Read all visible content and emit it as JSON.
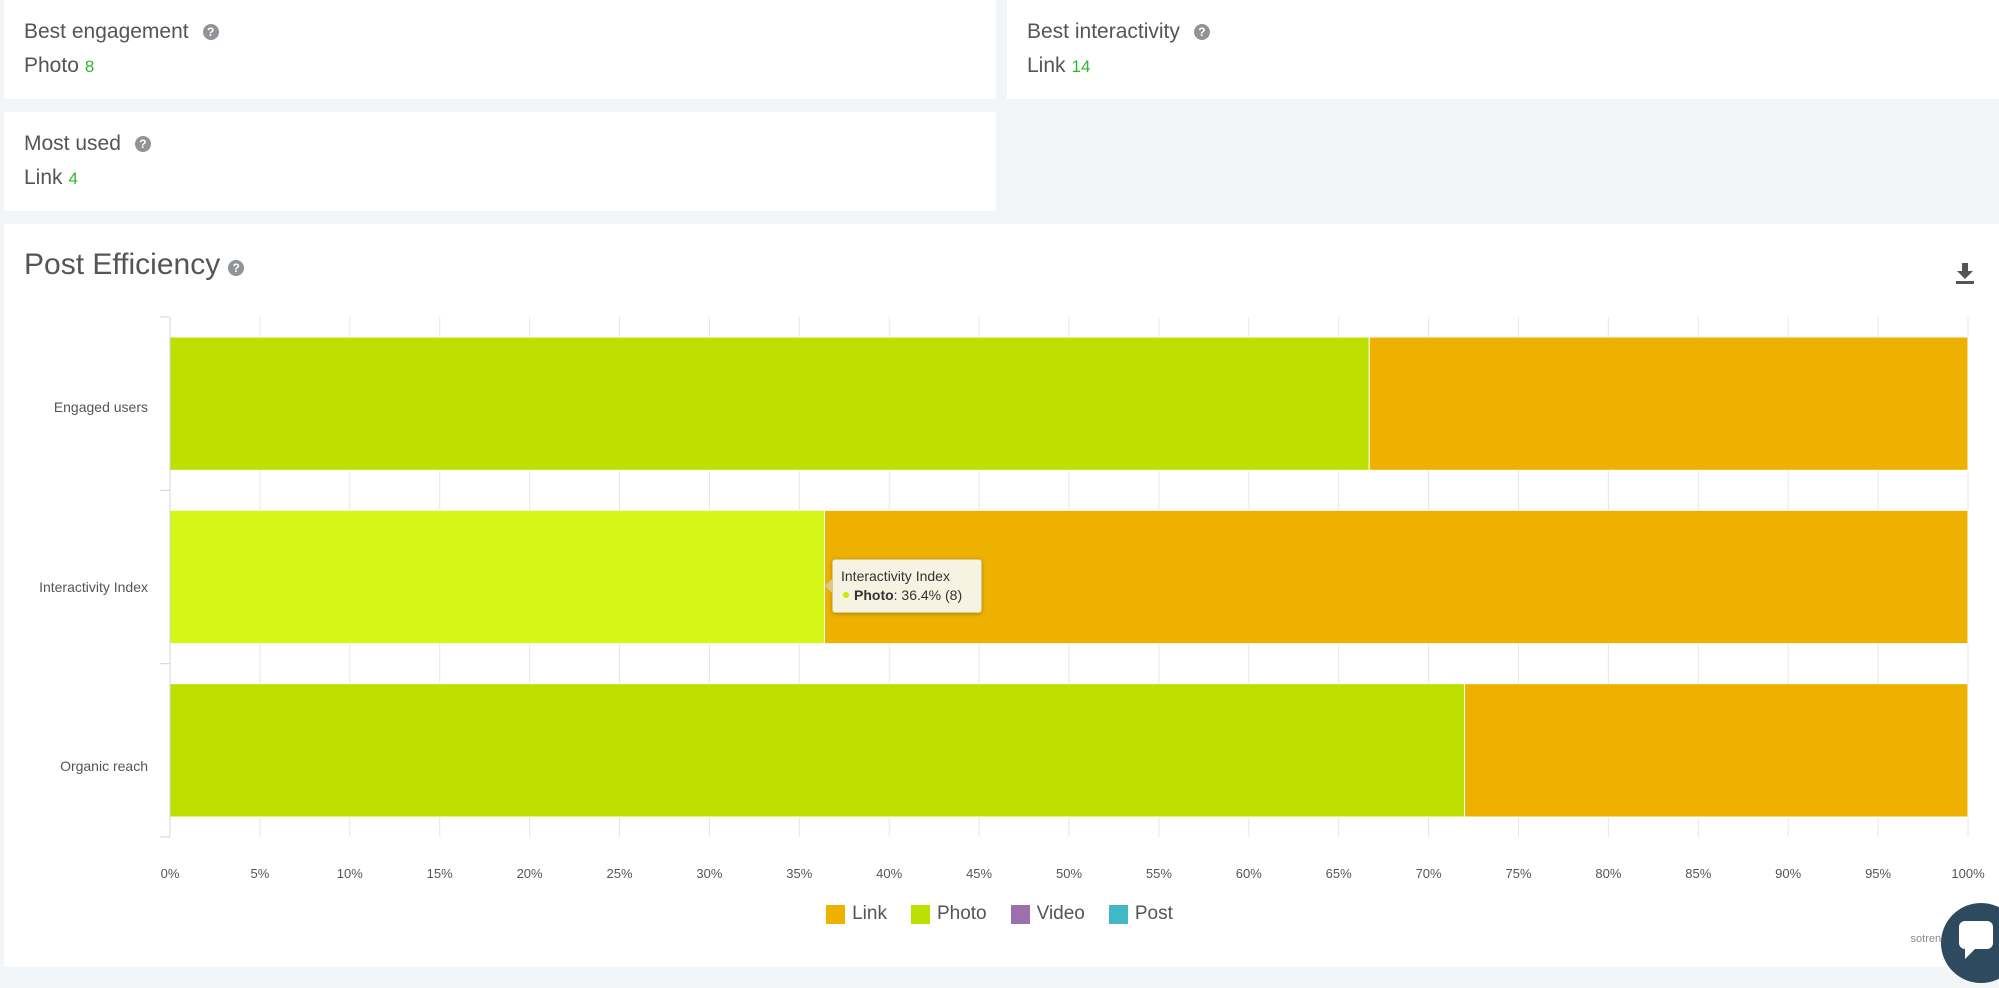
{
  "stats": {
    "best_engagement": {
      "title": "Best engagement",
      "type": "Photo",
      "value": "8"
    },
    "best_interactivity": {
      "title": "Best interactivity",
      "type": "Link",
      "value": "14"
    },
    "most_used": {
      "title": "Most used",
      "type": "Link",
      "value": "4"
    }
  },
  "help_glyph": "?",
  "section": {
    "title": "Post Efficiency"
  },
  "chart_data": {
    "type": "bar",
    "orientation": "horizontal",
    "stacked": "percent",
    "title": "Post Efficiency",
    "categories": [
      "Engaged users",
      "Interactivity Index",
      "Organic reach"
    ],
    "series": [
      {
        "name": "Photo",
        "values": [
          66.7,
          36.4,
          72.0
        ]
      },
      {
        "name": "Link",
        "values": [
          33.3,
          63.6,
          28.0
        ]
      },
      {
        "name": "Video",
        "values": [
          0,
          0,
          0
        ]
      },
      {
        "name": "Post",
        "values": [
          0,
          0,
          0
        ]
      }
    ],
    "xlim": [
      0,
      100
    ],
    "xticks": [
      "0%",
      "5%",
      "10%",
      "15%",
      "20%",
      "25%",
      "30%",
      "35%",
      "40%",
      "45%",
      "50%",
      "55%",
      "60%",
      "65%",
      "70%",
      "75%",
      "80%",
      "85%",
      "90%",
      "95%",
      "100%"
    ],
    "grid": true,
    "legend_position": "bottom-center",
    "highlighted": {
      "category": "Interactivity Index",
      "series": "Photo"
    }
  },
  "colors": {
    "Link": "#efb100",
    "Photo": "#bde000",
    "Photo_hover": "#d4f719",
    "Video": "#9b70ad",
    "Post": "#41b8c6"
  },
  "legend": [
    {
      "label": "Link",
      "color": "#efb100"
    },
    {
      "label": "Photo",
      "color": "#bde000"
    },
    {
      "label": "Video",
      "color": "#9b70ad"
    },
    {
      "label": "Post",
      "color": "#41b8c6"
    }
  ],
  "tooltip": {
    "title": "Interactivity Index",
    "series": "Photo",
    "value_text": ": 36.4% (8)"
  },
  "credit": "sotrender"
}
